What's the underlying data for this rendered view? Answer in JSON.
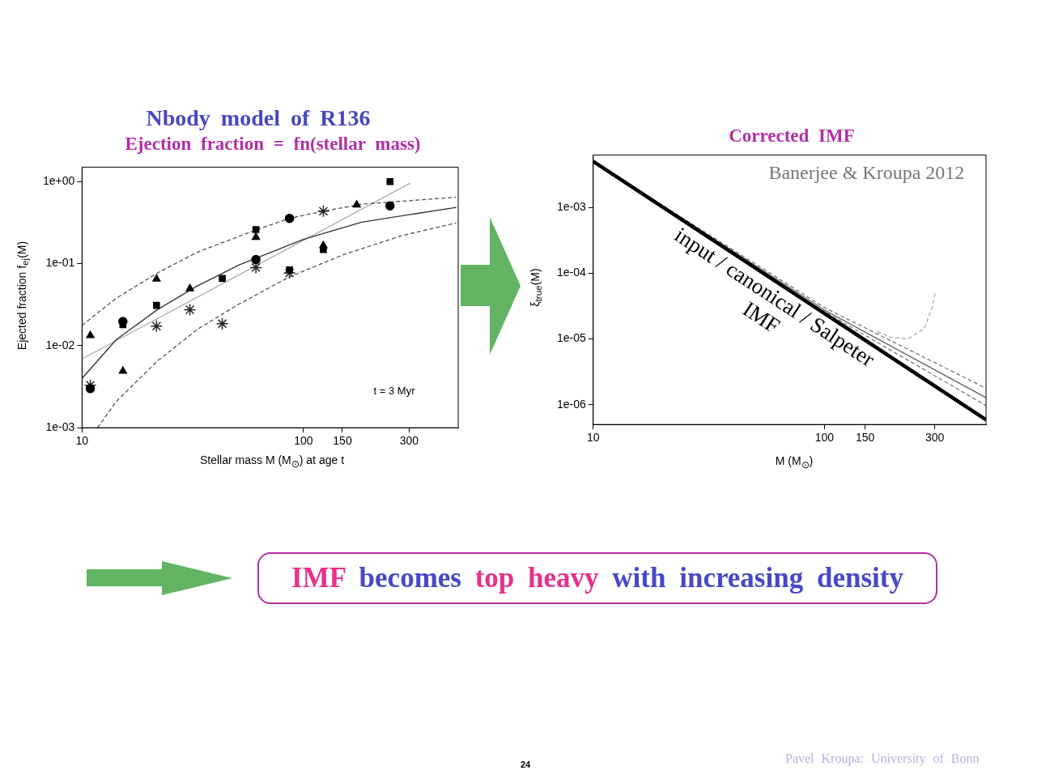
{
  "chart_data": [
    {
      "type": "scatter",
      "title": "Nbody model of R136",
      "subtitle": "Ejection fraction = fn(stellar mass)",
      "xlabel": "Stellar mass M (M$_{⊙}$) at age t",
      "ylabel": "Ejected fraction f$_{ej}$(M)",
      "log": "xy",
      "xlim": [
        10,
        500
      ],
      "ylim": [
        0.001,
        1.5
      ],
      "xticks": [
        10,
        100,
        150,
        300
      ],
      "yticks": [
        {
          "value": 1,
          "label": "1e+00"
        },
        {
          "value": 0.1,
          "label": "1e-01"
        },
        {
          "value": 0.01,
          "label": "1e-02"
        },
        {
          "value": 0.001,
          "label": "1e-03"
        }
      ],
      "legend": false,
      "annotations": [
        "t = 3 Myr"
      ],
      "series": [
        {
          "type": "scatter",
          "marker": "triangle",
          "color": "#000000",
          "x": [
            10.9,
            15.3,
            21.7,
            30.7,
            61,
            123,
            174
          ],
          "values": [
            0.0133,
            0.0049,
            0.065,
            0.0496,
            0.21,
            0.166,
            0.52
          ]
        },
        {
          "type": "scatter",
          "marker": "circle",
          "color": "#000000",
          "x": [
            10.9,
            15.3,
            61,
            86.5,
            246
          ],
          "values": [
            0.003,
            0.0197,
            0.112,
            0.356,
            0.507
          ]
        },
        {
          "type": "scatter",
          "marker": "square",
          "color": "#000000",
          "x": [
            15.3,
            21.7,
            43,
            61,
            86.5,
            123,
            246
          ],
          "values": [
            0.018,
            0.031,
            0.066,
            0.26,
            0.084,
            0.148,
            1.0
          ]
        },
        {
          "type": "scatter",
          "marker": "cross",
          "color": "#222222",
          "x": [
            10.9,
            21.7,
            30.7,
            43,
            61,
            86.5,
            123
          ],
          "values": [
            0.0033,
            0.0173,
            0.0274,
            0.0185,
            0.0896,
            0.077,
            0.435
          ]
        },
        {
          "type": "line",
          "marker": "none",
          "line_style": "solid",
          "color": "#333333",
          "x": [
            10,
            14.3,
            21.9,
            33.4,
            51,
            100,
            183,
            490
          ],
          "values": [
            0.004,
            0.0119,
            0.0275,
            0.054,
            0.096,
            0.197,
            0.32,
            0.485
          ]
        },
        {
          "type": "line",
          "marker": "none",
          "line_style": "dashed",
          "color": "#555555",
          "x": [
            10,
            14.3,
            21.9,
            33.4,
            61,
            86.5,
            123,
            183,
            490
          ],
          "values": [
            0.0177,
            0.038,
            0.077,
            0.139,
            0.257,
            0.356,
            0.435,
            0.53,
            0.645
          ]
        },
        {
          "type": "line",
          "marker": "none",
          "line_style": "dashed",
          "color": "#555555",
          "x": [
            11.75,
            14.3,
            21.9,
            33.4,
            51,
            86.5,
            150,
            279,
            490
          ],
          "values": [
            0.001,
            0.0021,
            0.0065,
            0.016,
            0.032,
            0.069,
            0.127,
            0.22,
            0.313
          ]
        },
        {
          "type": "line",
          "marker": "none",
          "line_style": "solid",
          "color": "#aaaaaa",
          "x": [
            10,
            304
          ],
          "values": [
            0.0069,
            0.957
          ]
        }
      ]
    },
    {
      "type": "line",
      "title": "Corrected IMF",
      "xlabel": "M (M$_{⊙}$)",
      "ylabel": "ξ$_{true}$(M)",
      "log": "xy",
      "xlim": [
        10,
        500
      ],
      "ylim": [
        5e-07,
        0.0063
      ],
      "xticks": [
        10,
        100,
        150,
        300
      ],
      "yticks": [
        {
          "value": 0.001,
          "label": "1e-03"
        },
        {
          "value": 0.0001,
          "label": "1e-04"
        },
        {
          "value": 1e-05,
          "label": "1e-05"
        },
        {
          "value": 1e-06,
          "label": "1e-06"
        }
      ],
      "legend": false,
      "annotations": [
        "Banerjee & Kroupa 2012",
        "input / canonical / Salpeter IMF"
      ],
      "series": [
        {
          "line_style": "solid",
          "color": "#000000",
          "x": [
            10,
            500
          ],
          "values": [
            0.00503,
            5.9e-07
          ]
        },
        {
          "line_style": "dashed",
          "color": "#777777",
          "x": [
            10,
            100,
            500
          ],
          "values": [
            0.00503,
            3e-05,
            1.78e-06
          ]
        },
        {
          "line_style": "solid",
          "color": "#666666",
          "x": [
            10,
            100,
            500
          ],
          "values": [
            0.00503,
            2.76e-05,
            1.28e-06
          ]
        },
        {
          "line_style": "dashed",
          "color": "#777777",
          "x": [
            10,
            100,
            500
          ],
          "values": [
            0.00503,
            2.6e-05,
            9.7e-07
          ]
        },
        {
          "line_style": "dashed",
          "color": "#aaaaaa",
          "x": [
            169,
            194,
            229,
            270,
            292,
            302
          ],
          "values": [
            1.3e-05,
            1.06e-05,
            1e-05,
            1.43e-05,
            3e-05,
            5.2e-05
          ]
        }
      ]
    },
    {
      "type": "other",
      "annotations": [
        "IMF becomes top heavy with increasing density",
        "24",
        "Pavel Kroupa: University of Bonn"
      ]
    }
  ]
}
